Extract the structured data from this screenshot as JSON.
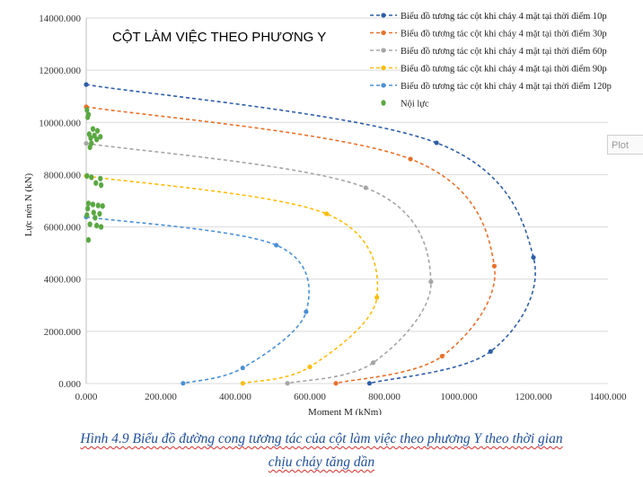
{
  "chart_data": {
    "type": "line",
    "title": "CỘT LÀM VIỆC THEO PHƯƠNG Y",
    "xlabel": "Moment M (kNm)",
    "ylabel": "Lực nén N (kN)",
    "xlim": [
      0,
      1400
    ],
    "ylim": [
      0,
      14000
    ],
    "x_ticks": [
      "0.000",
      "200.000",
      "400.000",
      "600.000",
      "800.000",
      "1000.000",
      "1200.000",
      "1400.000"
    ],
    "y_ticks": [
      "0.000",
      "2000.000",
      "4000.000",
      "6000.000",
      "8000.000",
      "10000.000",
      "12000.000",
      "14000.000"
    ],
    "legend_position": "top-right",
    "grid": "horizontal",
    "series": [
      {
        "name": "Biểu đồ tương tác cột khi cháy 4 mặt tại thời điểm 10p",
        "color": "#2e5ea8",
        "points": [
          [
            0,
            11450
          ],
          [
            940,
            9220
          ],
          [
            1200,
            4830
          ],
          [
            1085,
            1230
          ],
          [
            760,
            10
          ]
        ]
      },
      {
        "name": "Biểu đồ tương tác cột khi cháy 4 mặt tại thời điểm 30p",
        "color": "#e8712a",
        "points": [
          [
            0,
            10600
          ],
          [
            870,
            8600
          ],
          [
            1095,
            4500
          ],
          [
            955,
            1050
          ],
          [
            670,
            10
          ]
        ]
      },
      {
        "name": "Biểu đồ tương tác cột khi cháy 4 mặt tại thời điểm 60p",
        "color": "#a5a5a5",
        "points": [
          [
            0,
            9200
          ],
          [
            750,
            7500
          ],
          [
            925,
            3900
          ],
          [
            770,
            800
          ],
          [
            540,
            10
          ]
        ]
      },
      {
        "name": "Biểu đồ tương tác cột khi cháy 4 mặt tại thời điểm 90p",
        "color": "#fbbd0b",
        "points": [
          [
            0,
            7950
          ],
          [
            645,
            6500
          ],
          [
            780,
            3300
          ],
          [
            600,
            640
          ],
          [
            420,
            10
          ]
        ]
      },
      {
        "name": "Biểu đồ tương tác cột khi cháy 4 mặt tại thời điểm 120p",
        "color": "#4a90d4",
        "points": [
          [
            0,
            6380
          ],
          [
            510,
            5300
          ],
          [
            590,
            2750
          ],
          [
            420,
            600
          ],
          [
            260,
            10
          ]
        ]
      },
      {
        "name": "Nội lực",
        "color": "#5aa842",
        "type": "scatter",
        "points": [
          [
            2,
            10480
          ],
          [
            6,
            10300
          ],
          [
            4,
            10200
          ],
          [
            18,
            9750
          ],
          [
            30,
            9680
          ],
          [
            8,
            9550
          ],
          [
            22,
            9500
          ],
          [
            38,
            9450
          ],
          [
            12,
            9400
          ],
          [
            28,
            9350
          ],
          [
            14,
            9200
          ],
          [
            10,
            9050
          ],
          [
            2,
            7950
          ],
          [
            14,
            7900
          ],
          [
            38,
            7850
          ],
          [
            26,
            7680
          ],
          [
            40,
            7600
          ],
          [
            6,
            6900
          ],
          [
            18,
            6860
          ],
          [
            32,
            6820
          ],
          [
            44,
            6800
          ],
          [
            4,
            6700
          ],
          [
            20,
            6550
          ],
          [
            36,
            6500
          ],
          [
            2,
            6450
          ],
          [
            24,
            6350
          ],
          [
            10,
            6100
          ],
          [
            28,
            6050
          ],
          [
            40,
            6000
          ],
          [
            6,
            5500
          ]
        ]
      }
    ]
  },
  "plot_tab_label": "Plot",
  "caption": {
    "line1": "Hình 4.9 Biểu đồ đường cong tương tác của cột làm việc theo phương Y theo thời gian",
    "line2": "chịu cháy tăng dần"
  }
}
